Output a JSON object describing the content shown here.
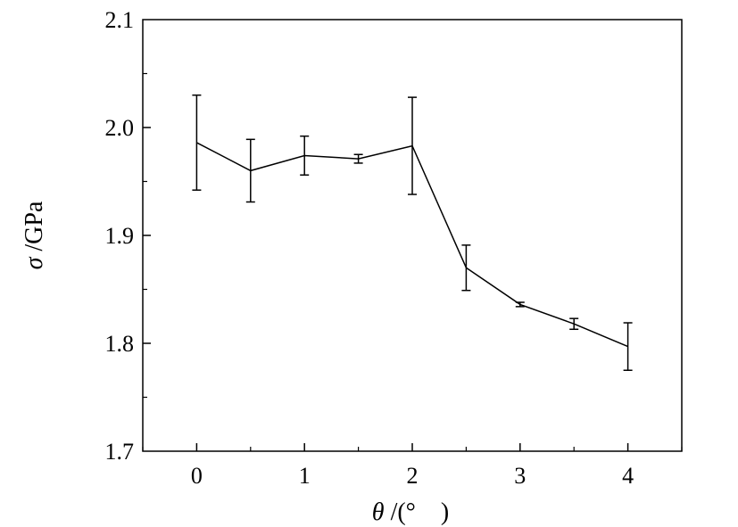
{
  "chart_data": {
    "type": "line",
    "title": "",
    "xlabel_symbol": "θ",
    "xlabel_unit": " /(°　)",
    "ylabel_symbol": "σ",
    "ylabel_unit": " /GPa",
    "xlim": [
      -0.5,
      4.5
    ],
    "ylim": [
      1.7,
      2.1
    ],
    "xticks": [
      0,
      1,
      2,
      3,
      4
    ],
    "xtick_labels": [
      "0",
      "1",
      "2",
      "3",
      "4"
    ],
    "yticks": [
      1.7,
      1.8,
      1.9,
      2.0,
      2.1
    ],
    "ytick_labels": [
      "1.7",
      "1.8",
      "1.9",
      "2.0",
      "2.1"
    ],
    "grid": false,
    "series": [
      {
        "x": [
          0,
          0.5,
          1,
          1.5,
          2,
          2.5,
          3,
          3.5,
          4
        ],
        "y": [
          1.986,
          1.96,
          1.974,
          1.971,
          1.983,
          1.87,
          1.836,
          1.818,
          1.797
        ],
        "error": [
          0.044,
          0.029,
          0.018,
          0.004,
          0.045,
          0.021,
          0.002,
          0.005,
          0.022
        ]
      }
    ],
    "colors": {
      "line": "#000000"
    }
  }
}
